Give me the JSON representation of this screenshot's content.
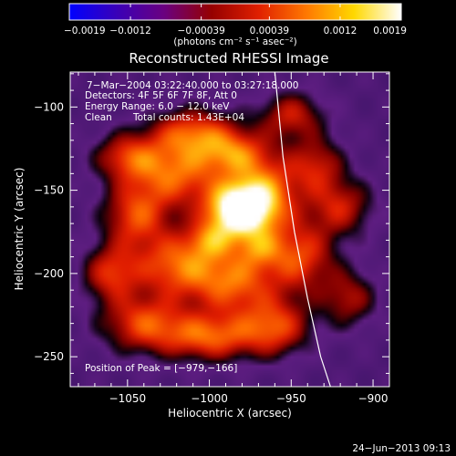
{
  "chart_data": {
    "type": "heatmap",
    "title": "Reconstructed RHESSI Image",
    "xlabel": "Heliocentric X (arcsec)",
    "ylabel": "Heliocentric Y (arcsec)",
    "xlim": [
      -1085,
      -890
    ],
    "ylim": [
      -268,
      -79
    ],
    "x_ticks": [
      {
        "value": -1050,
        "label": "−1050"
      },
      {
        "value": -1000,
        "label": "−1000"
      },
      {
        "value": -950,
        "label": "−950"
      },
      {
        "value": -900,
        "label": "−900"
      }
    ],
    "y_ticks": [
      {
        "value": -100,
        "label": "−100"
      },
      {
        "value": -150,
        "label": "−150"
      },
      {
        "value": -200,
        "label": "−200"
      },
      {
        "value": -250,
        "label": "−250"
      }
    ],
    "colorbar": {
      "range": [
        -0.0019,
        0.0019
      ],
      "tick_values": [
        -0.0019,
        -0.0012,
        -0.00039,
        0.00039,
        0.0012,
        0.0019
      ],
      "tick_labels": [
        "−0.0019",
        "−0.0012",
        "−0.00039",
        "0.00039",
        "0.0012",
        "0.0019"
      ],
      "unit": "(photons cm⁻² s⁻¹ asec⁻²)",
      "colors": [
        "#0000ff",
        "#3a00b8",
        "#6a0080",
        "#960000",
        "#e02000",
        "#ff7800",
        "#ffd800",
        "#ffffff"
      ]
    },
    "annotations": {
      "time": "7−Mar−2004 03:22:40.000 to 03:27:18.000",
      "detectors": "Detectors: 4F 5F 6F 7F 8F, Att 0",
      "energy": "Energy Range: 6.0 − 12.0 keV",
      "algorithm": "Clean",
      "counts": "Total counts: 1.43E+04",
      "peak": "Position of Peak = [−979,−166]"
    },
    "peak": {
      "x": -979,
      "y": -166
    },
    "limb_curve": [
      {
        "x": -960,
        "y": -79
      },
      {
        "x": -955,
        "y": -130
      },
      {
        "x": -948,
        "y": -175
      },
      {
        "x": -940,
        "y": -215
      },
      {
        "x": -932,
        "y": -250
      },
      {
        "x": -926,
        "y": -268
      }
    ],
    "blobs": [
      {
        "x": -983,
        "y": -162,
        "sx": 14,
        "sy": 12,
        "a": 1.0
      },
      {
        "x": -965,
        "y": -152,
        "sx": 14,
        "sy": 16,
        "a": 0.55
      },
      {
        "x": -1020,
        "y": -140,
        "sx": 18,
        "sy": 14,
        "a": 0.55
      },
      {
        "x": -1010,
        "y": -115,
        "sx": 18,
        "sy": 10,
        "a": 0.5
      },
      {
        "x": -985,
        "y": -128,
        "sx": 15,
        "sy": 10,
        "a": 0.5
      },
      {
        "x": -1045,
        "y": -165,
        "sx": 14,
        "sy": 14,
        "a": 0.5
      },
      {
        "x": -1050,
        "y": -130,
        "sx": 14,
        "sy": 10,
        "a": 0.45
      },
      {
        "x": -1020,
        "y": -195,
        "sx": 18,
        "sy": 14,
        "a": 0.55
      },
      {
        "x": -985,
        "y": -205,
        "sx": 18,
        "sy": 14,
        "a": 0.55
      },
      {
        "x": -945,
        "y": -190,
        "sx": 15,
        "sy": 15,
        "a": 0.5
      },
      {
        "x": -920,
        "y": -160,
        "sx": 14,
        "sy": 12,
        "a": 0.4
      },
      {
        "x": -935,
        "y": -135,
        "sx": 12,
        "sy": 12,
        "a": 0.4
      },
      {
        "x": -1040,
        "y": -230,
        "sx": 18,
        "sy": 12,
        "a": 0.5
      },
      {
        "x": -1000,
        "y": -238,
        "sx": 20,
        "sy": 10,
        "a": 0.55
      },
      {
        "x": -960,
        "y": -232,
        "sx": 15,
        "sy": 12,
        "a": 0.5
      },
      {
        "x": -1060,
        "y": -200,
        "sx": 12,
        "sy": 12,
        "a": 0.45
      },
      {
        "x": -950,
        "y": -105,
        "sx": 14,
        "sy": 10,
        "a": 0.4
      },
      {
        "x": -915,
        "y": -215,
        "sx": 12,
        "sy": 12,
        "a": 0.35
      },
      {
        "x": -1000,
        "y": -180,
        "sx": 10,
        "sy": 8,
        "a": 0.35
      },
      {
        "x": -970,
        "y": -185,
        "sx": 10,
        "sy": 8,
        "a": 0.3
      }
    ]
  },
  "footer": {
    "date": "24−Jun−2013 09:13"
  }
}
